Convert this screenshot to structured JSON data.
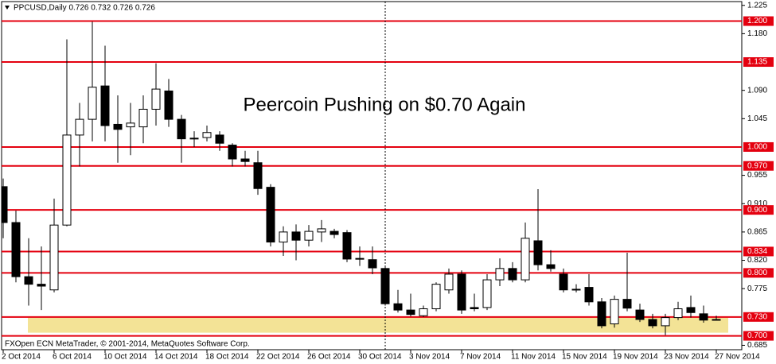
{
  "header": "PPCUSD,Daily  0.726 0.732 0.726 0.726",
  "footer": "FXOpen ECN MetaTrader, © 2001-2014, MetaQuotes Software Corp.",
  "chart_data": {
    "type": "candlestick",
    "title": "Peercoin Pushing on $0.70 Again",
    "categories": [
      "2 Oct 2014",
      null,
      null,
      null,
      "6 Oct 2014",
      null,
      null,
      null,
      "10 Oct 2014",
      null,
      null,
      null,
      "14 Oct 2014",
      null,
      null,
      null,
      "18 Oct 2014",
      null,
      null,
      null,
      "22 Oct 2014",
      null,
      null,
      null,
      "26 Oct 2014",
      null,
      null,
      null,
      "30 Oct 2014",
      null,
      null,
      null,
      "3 Nov 2014",
      null,
      null,
      null,
      "7 Nov 2014",
      null,
      null,
      null,
      "11 Nov 2014",
      null,
      null,
      null,
      "15 Nov 2014",
      null,
      null,
      null,
      "19 Nov 2014",
      null,
      null,
      null,
      "23 Nov 2014",
      null,
      null,
      null,
      "27 Nov 2014"
    ],
    "open": [
      0.937,
      0.88,
      0.794,
      0.782,
      0.773,
      0.876,
      1.019,
      1.044,
      1.097,
      1.036,
      1.032,
      1.032,
      1.06,
      1.089,
      1.044,
      1.013,
      1.015,
      1.019,
      1.003,
      0.981,
      0.975,
      0.936,
      0.849,
      0.865,
      0.852,
      0.865,
      0.866,
      0.864,
      0.823,
      0.821,
      0.807,
      0.751,
      0.741,
      0.732,
      0.743,
      0.773,
      0.798,
      0.745,
      0.745,
      0.789,
      0.807,
      0.789,
      0.851,
      0.813,
      0.798,
      0.773,
      0.777,
      0.754,
      0.719,
      0.758,
      0.741,
      0.726,
      0.716,
      0.729,
      0.745,
      0.735,
      0.726
    ],
    "high": [
      0.95,
      0.899,
      0.855,
      0.842,
      0.918,
      1.171,
      1.07,
      1.199,
      1.161,
      1.082,
      1.07,
      1.082,
      1.133,
      1.108,
      1.051,
      1.025,
      1.034,
      1.025,
      1.006,
      0.994,
      0.994,
      0.941,
      0.874,
      0.877,
      0.876,
      0.884,
      0.87,
      0.868,
      0.842,
      0.842,
      0.811,
      0.773,
      0.767,
      0.748,
      0.785,
      0.807,
      0.804,
      0.767,
      0.798,
      0.823,
      0.817,
      0.88,
      0.933,
      0.836,
      0.807,
      0.782,
      0.798,
      0.76,
      0.764,
      0.832,
      0.751,
      0.735,
      0.735,
      0.754,
      0.764,
      0.748,
      0.732
    ],
    "low": [
      0.855,
      0.785,
      0.748,
      0.741,
      0.769,
      0.874,
      0.969,
      1.009,
      1.009,
      0.975,
      0.987,
      1.006,
      1.034,
      1.032,
      0.975,
      1.0,
      1.009,
      0.994,
      0.969,
      0.969,
      0.924,
      0.842,
      0.827,
      0.82,
      0.842,
      0.849,
      0.855,
      0.817,
      0.811,
      0.798,
      0.748,
      0.737,
      0.731,
      0.73,
      0.739,
      0.767,
      0.735,
      0.739,
      0.741,
      0.779,
      0.785,
      0.785,
      0.804,
      0.802,
      0.769,
      0.769,
      0.748,
      0.712,
      0.713,
      0.739,
      0.722,
      0.712,
      0.701,
      0.725,
      0.729,
      0.721,
      0.726
    ],
    "close": [
      0.88,
      0.794,
      0.782,
      0.779,
      0.876,
      1.019,
      1.044,
      1.095,
      1.034,
      1.028,
      1.038,
      1.06,
      1.092,
      1.044,
      1.013,
      1.014,
      1.023,
      1.006,
      0.981,
      0.977,
      0.934,
      0.849,
      0.865,
      0.852,
      0.866,
      0.87,
      0.861,
      0.822,
      0.822,
      0.808,
      0.751,
      0.741,
      0.734,
      0.743,
      0.782,
      0.798,
      0.741,
      0.743,
      0.789,
      0.807,
      0.789,
      0.855,
      0.813,
      0.807,
      0.773,
      0.774,
      0.754,
      0.716,
      0.758,
      0.744,
      0.726,
      0.716,
      0.729,
      0.743,
      0.737,
      0.725,
      0.726
    ],
    "bull_color": "#ffffff",
    "bear_color": "#000000",
    "ylim": [
      0.678,
      1.231
    ],
    "yticks": [
      1.225,
      {
        "value": 1.18,
        "label": "1.180"
      },
      {
        "value": 1.09,
        "label": "1.090"
      },
      1.045,
      0.955,
      {
        "value": 0.91,
        "label": "0.910"
      },
      0.865,
      {
        "value": 0.82,
        "label": "0.820"
      },
      0.775,
      0.685
    ],
    "levels": [
      {
        "value": 1.2,
        "label": "1.200"
      },
      1.135,
      {
        "value": 1,
        "label": "1.000"
      },
      {
        "value": 0.97,
        "label": "0.970"
      },
      {
        "value": 0.9,
        "label": "0.900"
      },
      0.834,
      {
        "value": 0.8,
        "label": "0.800"
      },
      {
        "value": 0.73,
        "label": "0.730"
      },
      {
        "value": 0.7,
        "label": "0.700"
      }
    ],
    "level_color": "#e4000f",
    "zone": {
      "from": 0.705,
      "to": 0.729,
      "color": "#f3e396"
    },
    "grid": false
  }
}
